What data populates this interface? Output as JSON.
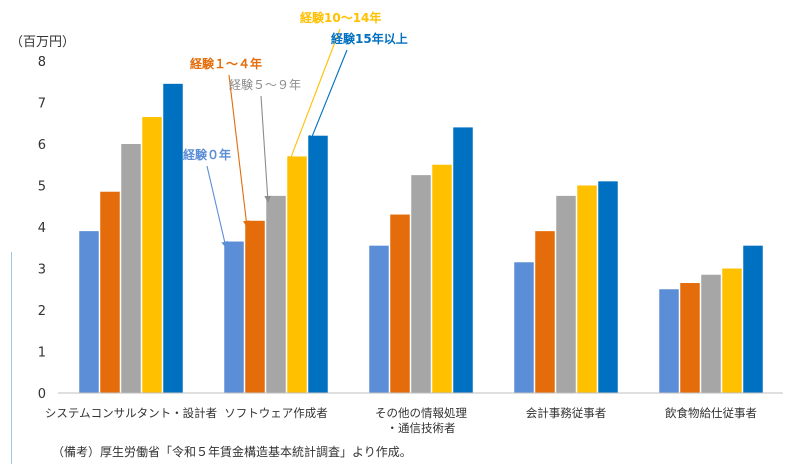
{
  "note": "（備考）厚生労働省「令和５年賃金構造基本統計調査」より作成。",
  "chart_data": {
    "type": "bar",
    "title": "",
    "xlabel": "",
    "ylabel": "（百万円）",
    "ylim": [
      0,
      8
    ],
    "yticks": [
      0,
      1,
      2,
      3,
      4,
      5,
      6,
      7,
      8
    ],
    "grid": false,
    "categories": [
      [
        "システムコンサルタント・設計者"
      ],
      [
        "ソフトウェア作成者"
      ],
      [
        "その他の情報処理",
        "・通信技術者"
      ],
      [
        "会計事務従事者"
      ],
      [
        "飲食物給仕従事者"
      ]
    ],
    "series": [
      {
        "name": "経験０年",
        "color": "#5b8ed6",
        "values": [
          3.9,
          3.65,
          3.55,
          3.15,
          2.5
        ]
      },
      {
        "name": "経験１～４年",
        "color": "#e46c0a",
        "values": [
          4.85,
          4.15,
          4.3,
          3.9,
          2.65
        ]
      },
      {
        "name": "経験５～９年",
        "color": "#a6a6a6",
        "values": [
          6.0,
          4.75,
          5.25,
          4.75,
          2.85
        ]
      },
      {
        "name": "経験10～14年",
        "color": "#ffc000",
        "values": [
          6.65,
          5.7,
          5.5,
          5.0,
          3.0
        ]
      },
      {
        "name": "経験15年以上",
        "color": "#0070c0",
        "values": [
          7.45,
          6.2,
          6.4,
          5.1,
          3.55
        ]
      }
    ]
  }
}
